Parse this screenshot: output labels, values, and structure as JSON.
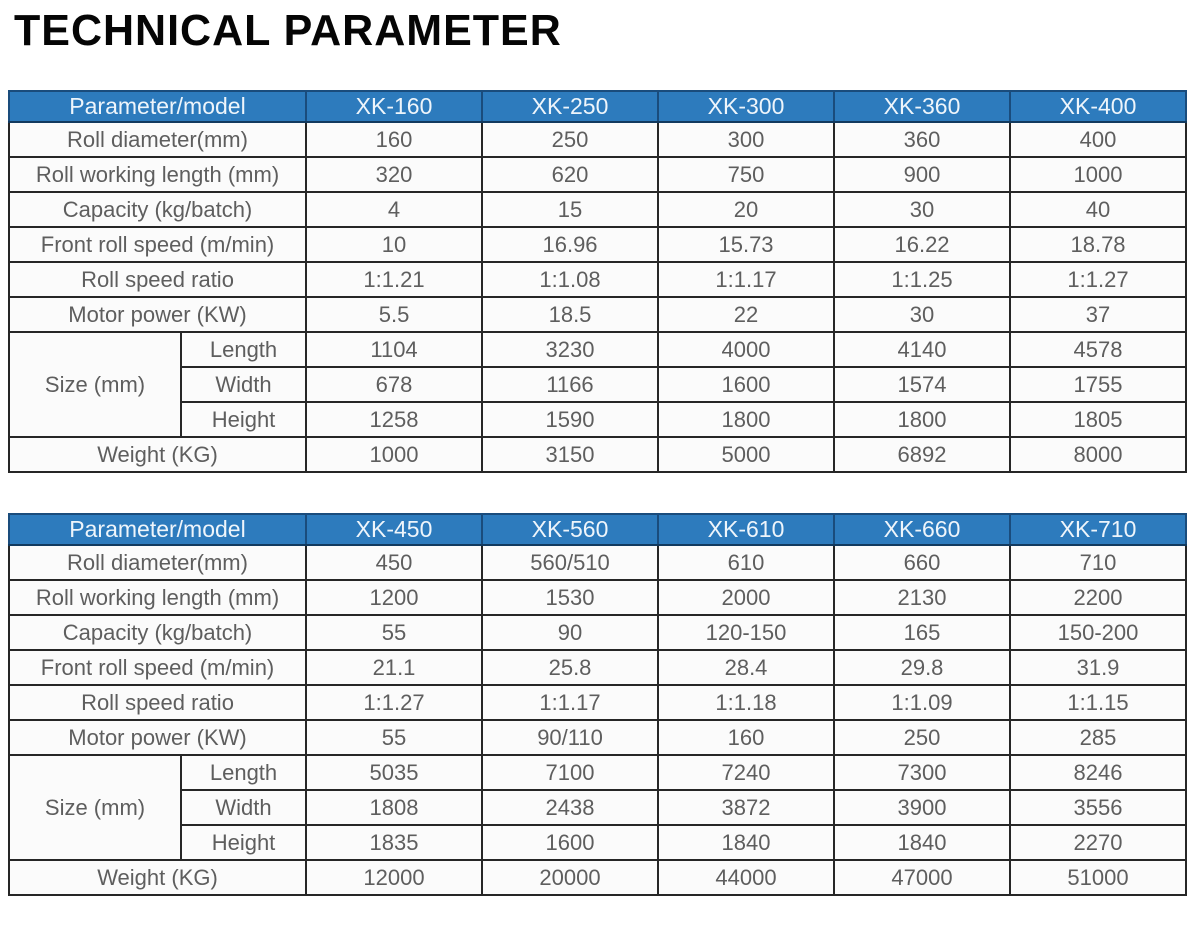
{
  "title": "TECHNICAL PARAMETER",
  "colors": {
    "header_bg": "#2d7bbd",
    "header_text": "#eef5fb",
    "header_border": "#1a4c7c",
    "cell_border": "#262626",
    "cell_text": "#5e5e5e",
    "cell_bg": "#fbfbfb"
  },
  "tables": [
    {
      "name": "table-1",
      "header_label": "Parameter/model",
      "models": [
        "XK-160",
        "XK-250",
        "XK-300",
        "XK-360",
        "XK-400"
      ],
      "rows": [
        {
          "label": "Roll diameter(mm)",
          "values": [
            "160",
            "250",
            "300",
            "360",
            "400"
          ]
        },
        {
          "label": "Roll working length (mm)",
          "values": [
            "320",
            "620",
            "750",
            "900",
            "1000"
          ]
        },
        {
          "label": "Capacity (kg/batch)",
          "values": [
            "4",
            "15",
            "20",
            "30",
            "40"
          ]
        },
        {
          "label": "Front roll speed (m/min)",
          "values": [
            "10",
            "16.96",
            "15.73",
            "16.22",
            "18.78"
          ]
        },
        {
          "label": "Roll speed ratio",
          "values": [
            "1:1.21",
            "1:1.08",
            "1:1.17",
            "1:1.25",
            "1:1.27"
          ]
        },
        {
          "label": "Motor power (KW)",
          "values": [
            "5.5",
            "18.5",
            "22",
            "30",
            "37"
          ]
        }
      ],
      "size_group": {
        "label": "Size (mm)",
        "rows": [
          {
            "label": "Length",
            "values": [
              "1104",
              "3230",
              "4000",
              "4140",
              "4578"
            ]
          },
          {
            "label": "Width",
            "values": [
              "678",
              "1166",
              "1600",
              "1574",
              "1755"
            ]
          },
          {
            "label": "Height",
            "values": [
              "1258",
              "1590",
              "1800",
              "1800",
              "1805"
            ]
          }
        ]
      },
      "footer_row": {
        "label": "Weight (KG)",
        "values": [
          "1000",
          "3150",
          "5000",
          "6892",
          "8000"
        ]
      }
    },
    {
      "name": "table-2",
      "header_label": "Parameter/model",
      "models": [
        "XK-450",
        "XK-560",
        "XK-610",
        "XK-660",
        "XK-710"
      ],
      "rows": [
        {
          "label": "Roll diameter(mm)",
          "values": [
            "450",
            "560/510",
            "610",
            "660",
            "710"
          ]
        },
        {
          "label": "Roll working length (mm)",
          "values": [
            "1200",
            "1530",
            "2000",
            "2130",
            "2200"
          ]
        },
        {
          "label": "Capacity (kg/batch)",
          "values": [
            "55",
            "90",
            "120-150",
            "165",
            "150-200"
          ]
        },
        {
          "label": "Front roll speed (m/min)",
          "values": [
            "21.1",
            "25.8",
            "28.4",
            "29.8",
            "31.9"
          ]
        },
        {
          "label": "Roll speed ratio",
          "values": [
            "1:1.27",
            "1:1.17",
            "1:1.18",
            "1:1.09",
            "1:1.15"
          ]
        },
        {
          "label": "Motor power (KW)",
          "values": [
            "55",
            "90/110",
            "160",
            "250",
            "285"
          ]
        }
      ],
      "size_group": {
        "label": "Size (mm)",
        "rows": [
          {
            "label": "Length",
            "values": [
              "5035",
              "7100",
              "7240",
              "7300",
              "8246"
            ]
          },
          {
            "label": "Width",
            "values": [
              "1808",
              "2438",
              "3872",
              "3900",
              "3556"
            ]
          },
          {
            "label": "Height",
            "values": [
              "1835",
              "1600",
              "1840",
              "1840",
              "2270"
            ]
          }
        ]
      },
      "footer_row": {
        "label": "Weight (KG)",
        "values": [
          "12000",
          "20000",
          "44000",
          "47000",
          "51000"
        ]
      }
    }
  ]
}
